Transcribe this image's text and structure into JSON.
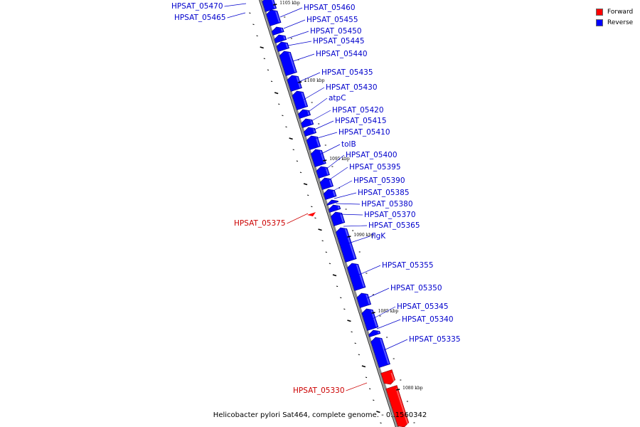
{
  "legend": {
    "forward": {
      "label": "Forward",
      "color": "#ff0000"
    },
    "reverse": {
      "label": "Reverse",
      "color": "#0000ff"
    }
  },
  "backbone_color": "#888888",
  "label_colors": {
    "forward": "#cc0000",
    "reverse": "#0000cc"
  },
  "footer": "Helicobacter pylori Sat464, complete genome. - 0..1560342",
  "scale_ticks": [
    "1105 kbp",
    "1100 kbp",
    "1095 kbp",
    "1090 kbp",
    "1085 kbp",
    "1080 kbp"
  ],
  "genes": [
    {
      "name": "HPSAT_05470",
      "strand": "reverse"
    },
    {
      "name": "HPSAT_05465",
      "strand": "reverse"
    },
    {
      "name": "HPSAT_05460",
      "strand": "reverse"
    },
    {
      "name": "HPSAT_05455",
      "strand": "reverse"
    },
    {
      "name": "HPSAT_05450",
      "strand": "reverse"
    },
    {
      "name": "HPSAT_05445",
      "strand": "reverse"
    },
    {
      "name": "HPSAT_05440",
      "strand": "reverse"
    },
    {
      "name": "HPSAT_05435",
      "strand": "reverse"
    },
    {
      "name": "HPSAT_05430",
      "strand": "reverse"
    },
    {
      "name": "atpC",
      "strand": "reverse"
    },
    {
      "name": "HPSAT_05420",
      "strand": "reverse"
    },
    {
      "name": "HPSAT_05415",
      "strand": "reverse"
    },
    {
      "name": "HPSAT_05410",
      "strand": "reverse"
    },
    {
      "name": "tolB",
      "strand": "reverse"
    },
    {
      "name": "HPSAT_05400",
      "strand": "reverse"
    },
    {
      "name": "HPSAT_05395",
      "strand": "reverse"
    },
    {
      "name": "HPSAT_05390",
      "strand": "reverse"
    },
    {
      "name": "HPSAT_05385",
      "strand": "reverse"
    },
    {
      "name": "HPSAT_05380",
      "strand": "reverse"
    },
    {
      "name": "HPSAT_05375",
      "strand": "forward"
    },
    {
      "name": "HPSAT_05370",
      "strand": "reverse"
    },
    {
      "name": "HPSAT_05365",
      "strand": "reverse"
    },
    {
      "name": "flgK",
      "strand": "reverse"
    },
    {
      "name": "HPSAT_05355",
      "strand": "reverse"
    },
    {
      "name": "HPSAT_05350",
      "strand": "reverse"
    },
    {
      "name": "HPSAT_05345",
      "strand": "reverse"
    },
    {
      "name": "HPSAT_05340",
      "strand": "reverse"
    },
    {
      "name": "HPSAT_05335",
      "strand": "reverse"
    },
    {
      "name": "HPSAT_05330",
      "strand": "forward"
    }
  ]
}
